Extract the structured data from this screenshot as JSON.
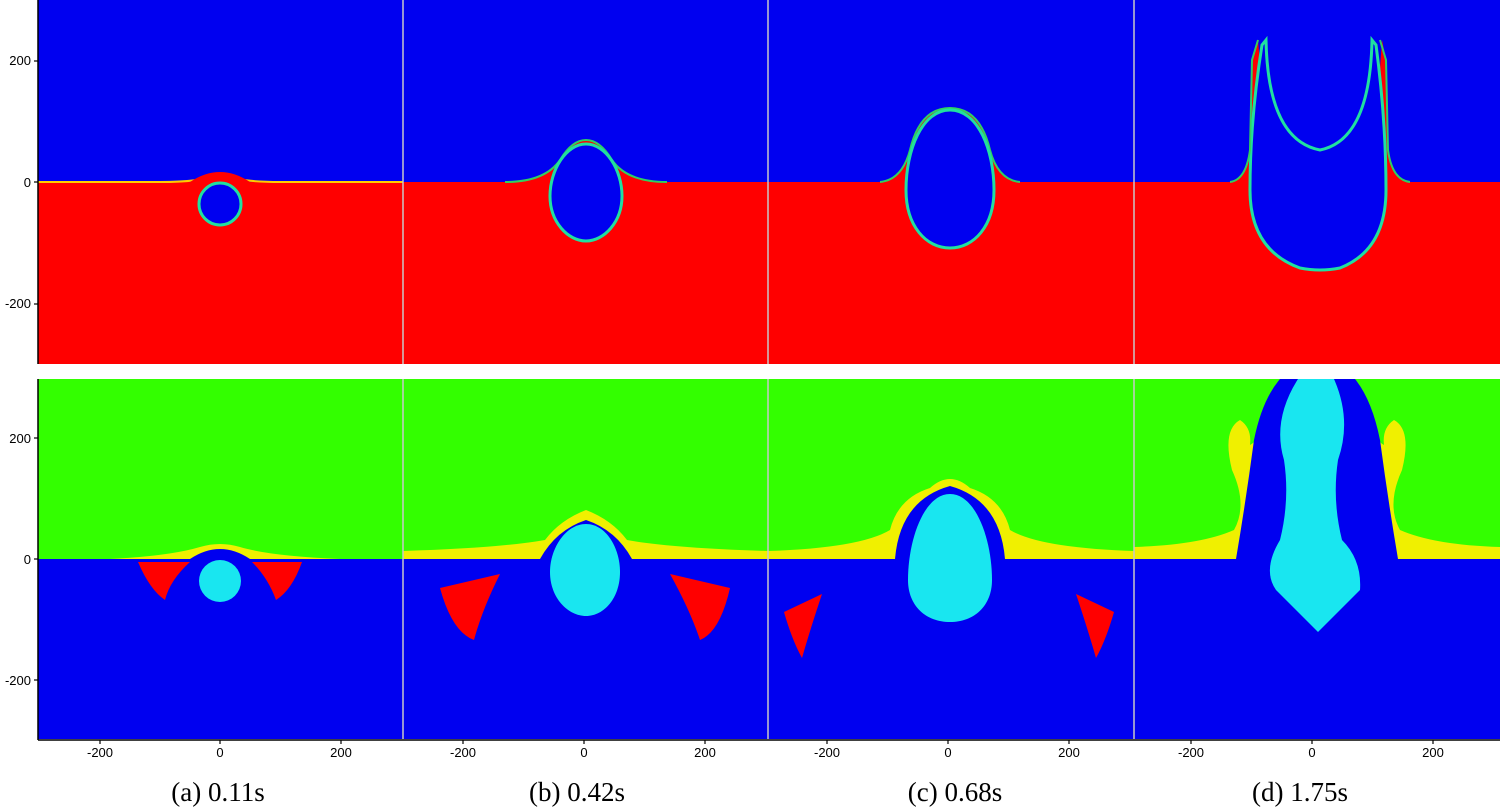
{
  "panels": [
    {
      "letter": "(a)",
      "time": "0.11s",
      "caption": "(a) 0.11s"
    },
    {
      "letter": "(b)",
      "time": "0.42s",
      "caption": "(b) 0.42s"
    },
    {
      "letter": "(c)",
      "time": "0.68s",
      "caption": "(c) 0.68s"
    },
    {
      "letter": "(d)",
      "time": "1.75s",
      "caption": "(d) 1.75s"
    }
  ],
  "axes": {
    "y_ticks": [
      "200",
      "0",
      "-200"
    ],
    "x_ticks": [
      "-200",
      "0",
      "200"
    ]
  },
  "colors": {
    "blue": "#0000f0",
    "red": "#ff0000",
    "green": "#33ff00",
    "yellow": "#f0f000",
    "cyan": "#19e6f0",
    "separator": "#c8c8c8"
  }
}
